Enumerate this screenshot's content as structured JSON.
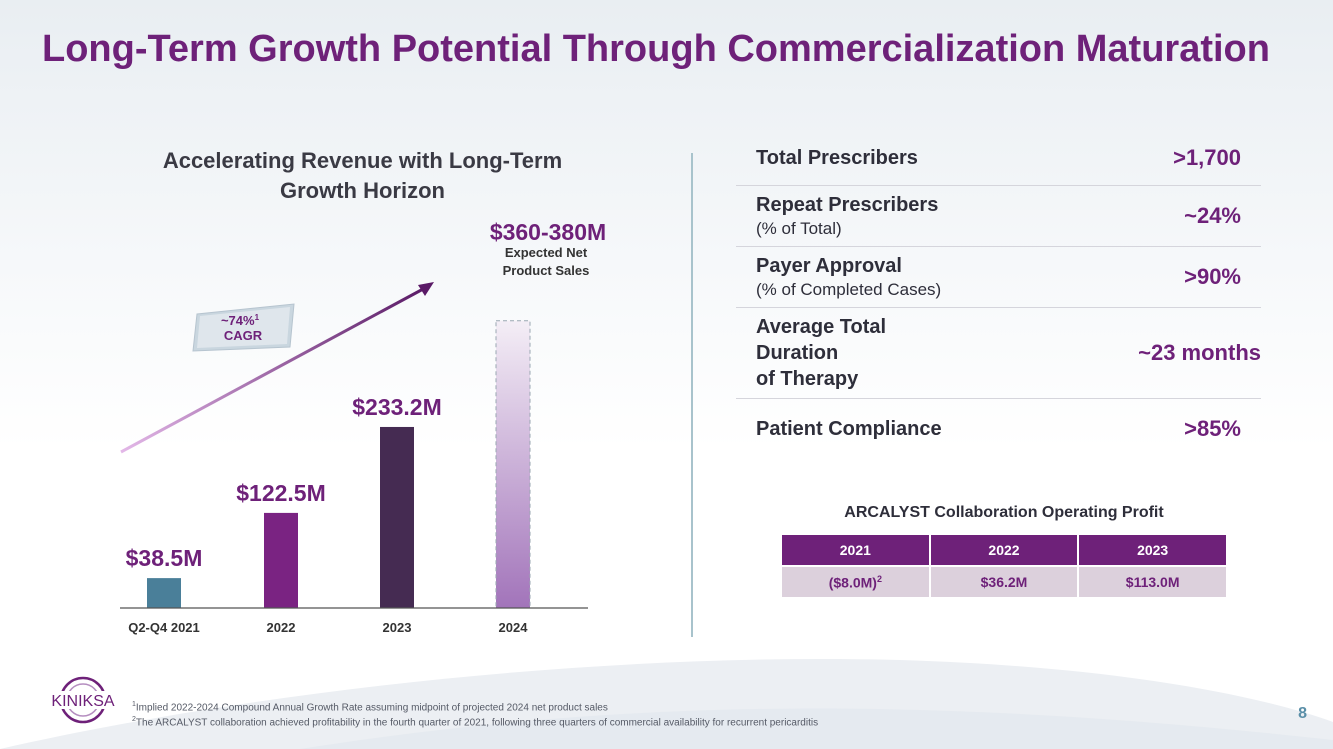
{
  "title": "Long-Term Growth Potential Through Commercialization Maturation",
  "chart_data": {
    "type": "bar",
    "title_line1": "Accelerating Revenue with Long-Term",
    "title_line2": "Growth Horizon",
    "categories": [
      "Q2-Q4 2021",
      "2022",
      "2023",
      "2024"
    ],
    "values": [
      38.5,
      122.5,
      233.2,
      370
    ],
    "value_labels": [
      "$38.5M",
      "$122.5M",
      "$233.2M",
      "$360-380M"
    ],
    "projected_note_line1": "Expected Net",
    "projected_note_line2": "Product Sales",
    "unit": "$M",
    "ylim": [
      0,
      380
    ],
    "bar_colors": [
      "#4a7f99",
      "#7a2382",
      "#452b52",
      "#a77cbc"
    ],
    "cagr_label_line1": "~74%",
    "cagr_sup": "1",
    "cagr_label_line2": "CAGR"
  },
  "metrics": [
    {
      "label": "Total Prescribers",
      "sub": "",
      "value": ">1,700"
    },
    {
      "label": "Repeat Prescribers",
      "sub": "(% of Total)",
      "value": "~24%"
    },
    {
      "label": "Payer Approval",
      "sub": "(% of Completed Cases)",
      "value": ">90%"
    },
    {
      "label": "Average Total\nDuration\nof Therapy",
      "sub": "",
      "value": "~23 months"
    },
    {
      "label": "Patient Compliance",
      "sub": "",
      "value": ">85%"
    }
  ],
  "profit_table": {
    "title": "ARCALYST Collaboration Operating Profit",
    "headers": [
      "2021",
      "2022",
      "2023"
    ],
    "values": [
      "($8.0M)",
      "$36.2M",
      "$113.0M"
    ],
    "first_sup": "2"
  },
  "logo_text": "KINIKSA",
  "footnotes": [
    "Implied 2022-2024 Compound Annual Growth Rate assuming midpoint of projected 2024 net product sales",
    "The ARCALYST collaboration achieved profitability in the fourth quarter of 2021, following three quarters of commercial availability for recurrent pericarditis"
  ],
  "footnote_marks": [
    "1",
    "2"
  ],
  "page_number": "8",
  "colors": {
    "brand_purple": "#6e2179",
    "teal": "#5a8fa8"
  }
}
